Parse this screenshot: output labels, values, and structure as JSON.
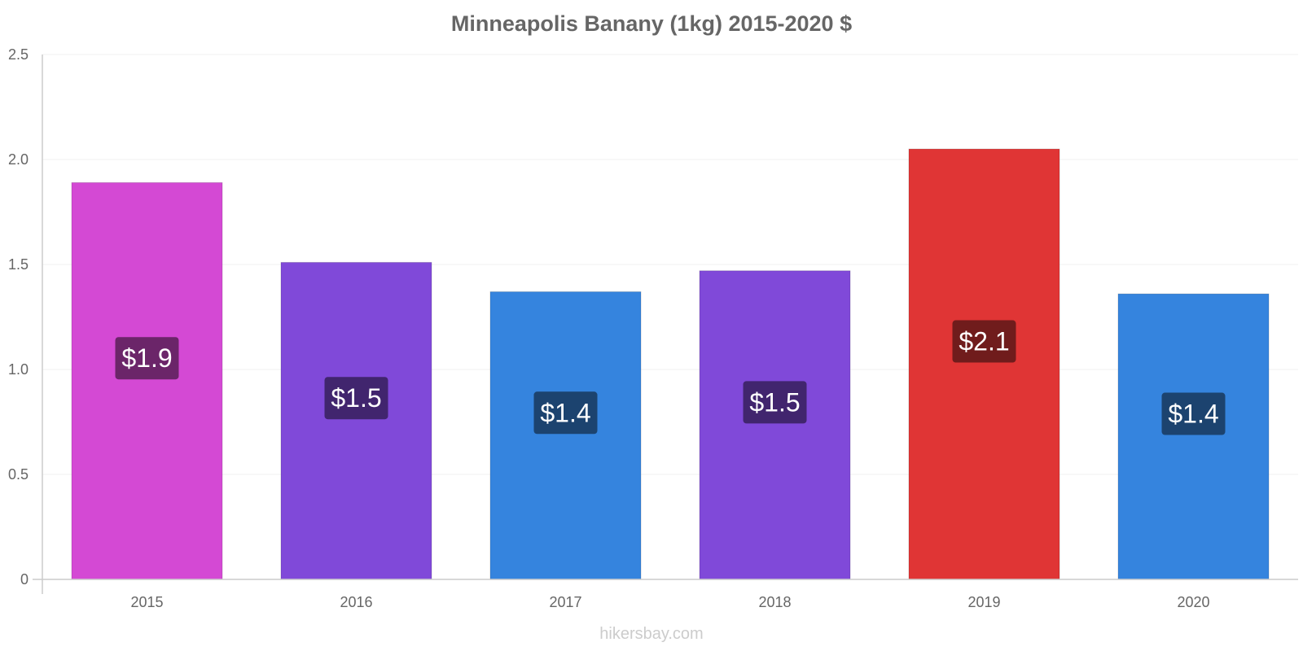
{
  "chart_data": {
    "type": "bar",
    "title": "Minneapolis Banany (1kg) 2015-2020 $",
    "categories": [
      "2015",
      "2016",
      "2017",
      "2018",
      "2019",
      "2020"
    ],
    "values": [
      1.89,
      1.51,
      1.37,
      1.47,
      2.05,
      1.36
    ],
    "data_labels": [
      "$1.9",
      "$1.5",
      "$1.4",
      "$1.5",
      "$2.1",
      "$1.4"
    ],
    "bar_colors": [
      "#d449d4",
      "#8049d9",
      "#3584de",
      "#8049d9",
      "#e03535",
      "#3584de"
    ],
    "label_box_colors": [
      "#6b2569",
      "#41256e",
      "#1c436f",
      "#41256e",
      "#701c1c",
      "#1c436f"
    ],
    "ylim": [
      0,
      2.5
    ],
    "yticks": [
      "0",
      "0.5",
      "1.0",
      "1.5",
      "2.0",
      "2.5"
    ],
    "xlabel": "",
    "ylabel": "",
    "grid": true,
    "legend": "none"
  },
  "watermark": "hikersbay.com"
}
